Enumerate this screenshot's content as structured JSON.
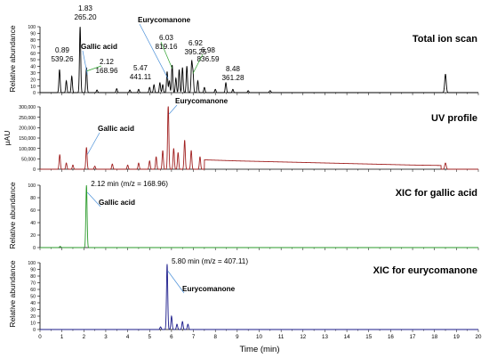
{
  "chart_data": {
    "type": "line",
    "x_axis": {
      "label": "Time (min)",
      "range": [
        0,
        20
      ],
      "ticks": [
        "0",
        "1",
        "2",
        "3",
        "4",
        "5",
        "6",
        "7",
        "8",
        "9",
        "10",
        "11",
        "12",
        "13",
        "14",
        "15",
        "16",
        "17",
        "18",
        "19",
        "20"
      ]
    },
    "panels": [
      {
        "id": "tic",
        "title": "Total ion scan",
        "ylabel": "Relative abundance",
        "ylim": [
          0,
          100
        ],
        "yticks": [
          "0",
          "10",
          "20",
          "30",
          "40",
          "50",
          "60",
          "70",
          "80",
          "90",
          "100"
        ],
        "color": "#000000",
        "peaks": [
          {
            "x": 0.89,
            "y": 35
          },
          {
            "x": 1.2,
            "y": 18
          },
          {
            "x": 1.45,
            "y": 25
          },
          {
            "x": 1.83,
            "y": 100
          },
          {
            "x": 2.12,
            "y": 38
          },
          {
            "x": 2.6,
            "y": 4
          },
          {
            "x": 3.5,
            "y": 6
          },
          {
            "x": 4.1,
            "y": 4
          },
          {
            "x": 4.5,
            "y": 5
          },
          {
            "x": 5.0,
            "y": 8
          },
          {
            "x": 5.2,
            "y": 12
          },
          {
            "x": 5.47,
            "y": 15
          },
          {
            "x": 5.6,
            "y": 12
          },
          {
            "x": 5.8,
            "y": 32
          },
          {
            "x": 5.9,
            "y": 18
          },
          {
            "x": 6.03,
            "y": 42
          },
          {
            "x": 6.2,
            "y": 22
          },
          {
            "x": 6.35,
            "y": 35
          },
          {
            "x": 6.5,
            "y": 38
          },
          {
            "x": 6.7,
            "y": 40
          },
          {
            "x": 6.92,
            "y": 45
          },
          {
            "x": 6.98,
            "y": 30
          },
          {
            "x": 7.2,
            "y": 18
          },
          {
            "x": 7.5,
            "y": 8
          },
          {
            "x": 8.0,
            "y": 5
          },
          {
            "x": 8.48,
            "y": 15
          },
          {
            "x": 8.8,
            "y": 5
          },
          {
            "x": 9.5,
            "y": 3
          },
          {
            "x": 10.5,
            "y": 3
          },
          {
            "x": 18.5,
            "y": 28
          }
        ],
        "annotations": [
          {
            "time": "0.89",
            "mz": "539.26",
            "x": 0.89
          },
          {
            "time": "1.83",
            "mz": "265.20",
            "x": 1.83
          },
          {
            "time": "2.12",
            "mz": "168.96",
            "x": 2.12
          },
          {
            "time": "5.47",
            "mz": "441.11",
            "x": 5.47
          },
          {
            "time": "6.03",
            "mz": "819.16",
            "x": 6.03
          },
          {
            "time": "6.92",
            "mz": "395.25",
            "x": 6.92
          },
          {
            "time": "6.98",
            "mz": "836.59",
            "x": 6.98
          },
          {
            "time": "8.48",
            "mz": "361.28",
            "x": 8.48
          }
        ],
        "compound_labels": [
          {
            "text": "Gallic acid",
            "x": 2.12
          },
          {
            "text": "Eurycomanone",
            "x": 5.8
          }
        ]
      },
      {
        "id": "uv",
        "title": "UV  profile",
        "ylabel": "μAU",
        "ylim": [
          0,
          300000
        ],
        "yticks": [
          "0",
          "50,000",
          "100,000",
          "150,000",
          "200,000",
          "250,000",
          "300,000"
        ],
        "color": "#a02020",
        "peaks": [
          {
            "x": 0.9,
            "y": 70000
          },
          {
            "x": 1.2,
            "y": 30000
          },
          {
            "x": 1.5,
            "y": 20000
          },
          {
            "x": 2.12,
            "y": 105000
          },
          {
            "x": 2.5,
            "y": 15000
          },
          {
            "x": 3.3,
            "y": 25000
          },
          {
            "x": 4.0,
            "y": 20000
          },
          {
            "x": 4.5,
            "y": 30000
          },
          {
            "x": 5.0,
            "y": 40000
          },
          {
            "x": 5.3,
            "y": 60000
          },
          {
            "x": 5.6,
            "y": 90000
          },
          {
            "x": 5.85,
            "y": 310000
          },
          {
            "x": 6.1,
            "y": 100000
          },
          {
            "x": 6.3,
            "y": 80000
          },
          {
            "x": 6.6,
            "y": 140000
          },
          {
            "x": 6.9,
            "y": 90000
          },
          {
            "x": 7.3,
            "y": 60000
          },
          {
            "x": 18.5,
            "y": 30000
          }
        ],
        "plateau": [
          [
            7.5,
            45000
          ],
          [
            9.0,
            40000
          ],
          [
            11.0,
            35000
          ],
          [
            13.0,
            30000
          ],
          [
            15.0,
            25000
          ],
          [
            17.0,
            20000
          ],
          [
            18.3,
            18000
          ]
        ],
        "compound_labels": [
          {
            "text": "Gallic acid",
            "x": 2.12
          },
          {
            "text": "Eurycomanone",
            "x": 5.85
          }
        ]
      },
      {
        "id": "xic_gallic",
        "title": "XIC for gallic acid",
        "ylabel": "Relative abundance",
        "ylim": [
          0,
          100
        ],
        "yticks": [
          "0",
          "20",
          "40",
          "60",
          "80",
          "100"
        ],
        "color": "#2a9a2a",
        "peaks": [
          {
            "x": 0.92,
            "y": 2
          },
          {
            "x": 2.12,
            "y": 100
          }
        ],
        "peak_label": "2.12 min (m/z = 168.96)",
        "compound_labels": [
          {
            "text": "Gallic acid",
            "x": 2.12
          }
        ]
      },
      {
        "id": "xic_eury",
        "title": "XIC for eurycomanone",
        "ylabel": "Relative abundance",
        "ylim": [
          0,
          100
        ],
        "yticks": [
          "0",
          "10",
          "20",
          "30",
          "40",
          "50",
          "60",
          "70",
          "80",
          "90",
          "100"
        ],
        "color": "#1a1a8a",
        "peaks": [
          {
            "x": 5.8,
            "y": 98
          },
          {
            "x": 6.0,
            "y": 20
          },
          {
            "x": 6.25,
            "y": 8
          },
          {
            "x": 6.5,
            "y": 12
          },
          {
            "x": 6.75,
            "y": 8
          },
          {
            "x": 5.5,
            "y": 4
          }
        ],
        "peak_label": "5.80 min (m/z = 407.11)",
        "compound_labels": [
          {
            "text": "Eurycomanone",
            "x": 5.8
          }
        ]
      }
    ]
  }
}
